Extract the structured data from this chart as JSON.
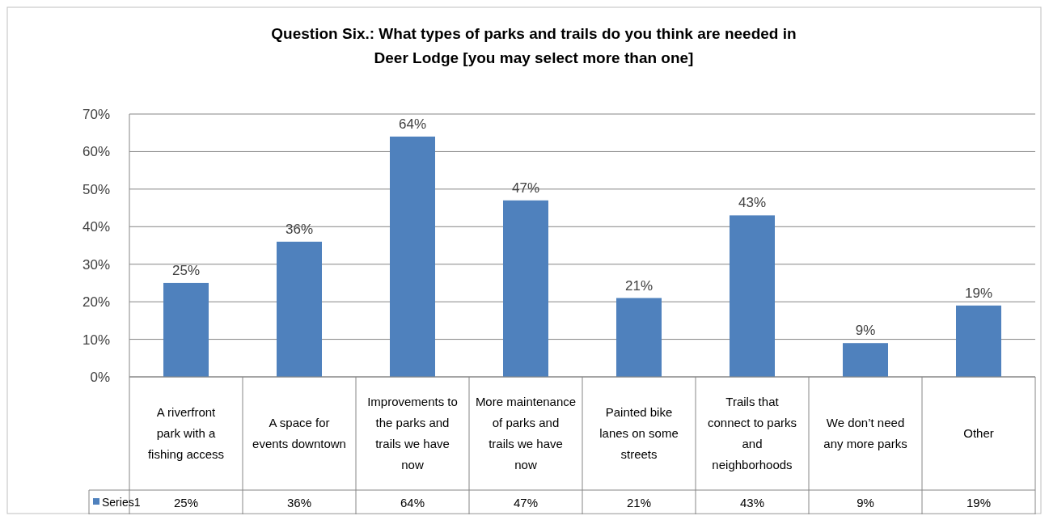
{
  "chart_data": {
    "type": "bar",
    "title": "Question Six.: What types of parks and trails do you think are needed in Deer Lodge [you may select more than one]",
    "categories": [
      "A riverfront park with a fishing access",
      "A space for events downtown",
      "Improvements to the parks and trails we have now",
      "More maintenance of parks and trails we have now",
      "Painted bike lanes on some streets",
      "Trails that connect to parks and neighborhoods",
      "We don’t need any more parks",
      "Other"
    ],
    "series": [
      {
        "name": "Series1",
        "color": "#4f81bd",
        "values": [
          25,
          36,
          64,
          47,
          21,
          43,
          9,
          19
        ],
        "value_labels": [
          "25%",
          "36%",
          "64%",
          "47%",
          "21%",
          "43%",
          "9%",
          "19%"
        ]
      }
    ],
    "ylim": [
      0,
      70
    ],
    "yticks": [
      {
        "value": 0,
        "label": "0%"
      },
      {
        "value": 10,
        "label": "10%"
      },
      {
        "value": 20,
        "label": "20%"
      },
      {
        "value": 30,
        "label": "30%"
      },
      {
        "value": 40,
        "label": "40%"
      },
      {
        "value": 50,
        "label": "50%"
      },
      {
        "value": 60,
        "label": "60%"
      },
      {
        "value": 70,
        "label": "70%"
      }
    ],
    "grid": "y",
    "legend": "bottom"
  }
}
